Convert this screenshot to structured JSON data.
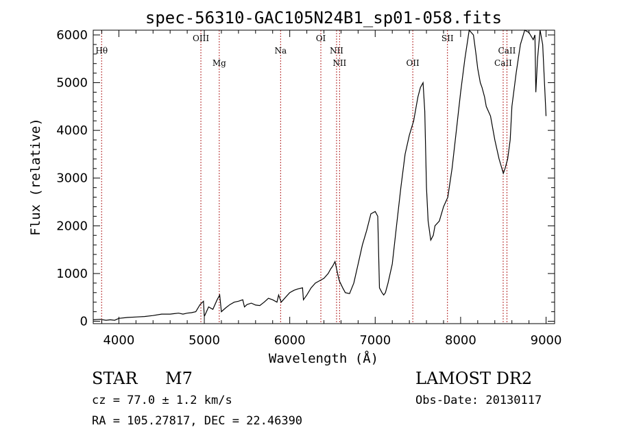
{
  "chart_data": {
    "type": "line",
    "title": "spec-56310-GAC105N24B1_sp01-058.fits",
    "xlabel": "Wavelength (Å)",
    "ylabel": "Flux (relative)",
    "xlim": [
      3700,
      9100
    ],
    "ylim": [
      -50,
      6100
    ],
    "x_ticks": [
      4000,
      5000,
      6000,
      7000,
      8000,
      9000
    ],
    "y_ticks": [
      0,
      1000,
      2000,
      3000,
      4000,
      5000,
      6000
    ],
    "grid": false,
    "line_color": "#000000",
    "series": [
      {
        "x": [
          3700,
          3780,
          3850,
          3900,
          3950,
          4000,
          4100,
          4200,
          4300,
          4400,
          4500,
          4600,
          4650,
          4700,
          4750,
          4800,
          4850,
          4900,
          4950,
          4990,
          5000,
          5050,
          5100,
          5150,
          5180,
          5200,
          5250,
          5300,
          5350,
          5400,
          5450,
          5470,
          5500,
          5550,
          5600,
          5650,
          5700,
          5750,
          5800,
          5850,
          5870,
          5900,
          5950,
          6000,
          6050,
          6100,
          6150,
          6160,
          6200,
          6250,
          6300,
          6350,
          6400,
          6450,
          6480,
          6500,
          6530,
          6560,
          6580,
          6620,
          6650,
          6700,
          6750,
          6800,
          6850,
          6900,
          6950,
          7000,
          7030,
          7050,
          7080,
          7100,
          7120,
          7150,
          7200,
          7250,
          7300,
          7350,
          7400,
          7450,
          7480,
          7500,
          7530,
          7560,
          7580,
          7600,
          7620,
          7650,
          7680,
          7700,
          7750,
          7800,
          7850,
          7900,
          7950,
          8000,
          8050,
          8100,
          8150,
          8180,
          8200,
          8230,
          8250,
          8280,
          8300,
          8350,
          8400,
          8450,
          8500,
          8520,
          8550,
          8580,
          8600,
          8650,
          8700,
          8750,
          8800,
          8850,
          8870,
          8880,
          8900,
          8930,
          8960,
          9000
        ],
        "y": [
          30,
          40,
          20,
          30,
          20,
          60,
          80,
          90,
          100,
          120,
          150,
          150,
          160,
          170,
          150,
          170,
          180,
          200,
          350,
          420,
          100,
          300,
          250,
          450,
          550,
          200,
          280,
          350,
          400,
          420,
          450,
          300,
          350,
          380,
          340,
          330,
          400,
          480,
          450,
          400,
          550,
          400,
          500,
          600,
          650,
          680,
          700,
          450,
          550,
          700,
          800,
          850,
          900,
          1000,
          1100,
          1150,
          1250,
          1000,
          850,
          700,
          600,
          580,
          800,
          1200,
          1600,
          1900,
          2250,
          2300,
          2200,
          700,
          600,
          550,
          600,
          800,
          1200,
          2000,
          2800,
          3500,
          3900,
          4200,
          4500,
          4700,
          4900,
          5000,
          4400,
          2800,
          2100,
          1700,
          1800,
          2000,
          2100,
          2400,
          2600,
          3200,
          4000,
          4800,
          5500,
          6100,
          6000,
          5600,
          5300,
          5000,
          4900,
          4700,
          4500,
          4300,
          3800,
          3400,
          3100,
          3200,
          3400,
          3800,
          4500,
          5200,
          5800,
          6100,
          6050,
          5900,
          6000,
          4800,
          5500,
          6100,
          5800,
          4300
        ]
      }
    ],
    "lines": [
      {
        "label": "Hθ",
        "x": 3798,
        "row": 1
      },
      {
        "label": "OIII",
        "x": 4960,
        "row": 0
      },
      {
        "label": "Mg",
        "x": 5175,
        "row": 2
      },
      {
        "label": "Na",
        "x": 5893,
        "row": 1
      },
      {
        "label": "OI",
        "x": 6364,
        "row": 0
      },
      {
        "label": "NII",
        "x": 6548,
        "row": 1
      },
      {
        "label": "NII",
        "x": 6583,
        "row": 2
      },
      {
        "label": "OII",
        "x": 7440,
        "row": 2
      },
      {
        "label": "SII",
        "x": 7846,
        "row": 0
      },
      {
        "label": "CaII",
        "x": 8498,
        "row": 2
      },
      {
        "label": "CaII",
        "x": 8542,
        "row": 1
      }
    ],
    "marker_color": "#b22222"
  },
  "info": {
    "object_class": "STAR",
    "subclass": "M7",
    "survey": "LAMOST DR2",
    "cz": "cz = 77.0 ± 1.2 km/s",
    "obs_date": "Obs-Date: 20130117",
    "coords": "RA = 105.27817, DEC =  22.46390"
  }
}
